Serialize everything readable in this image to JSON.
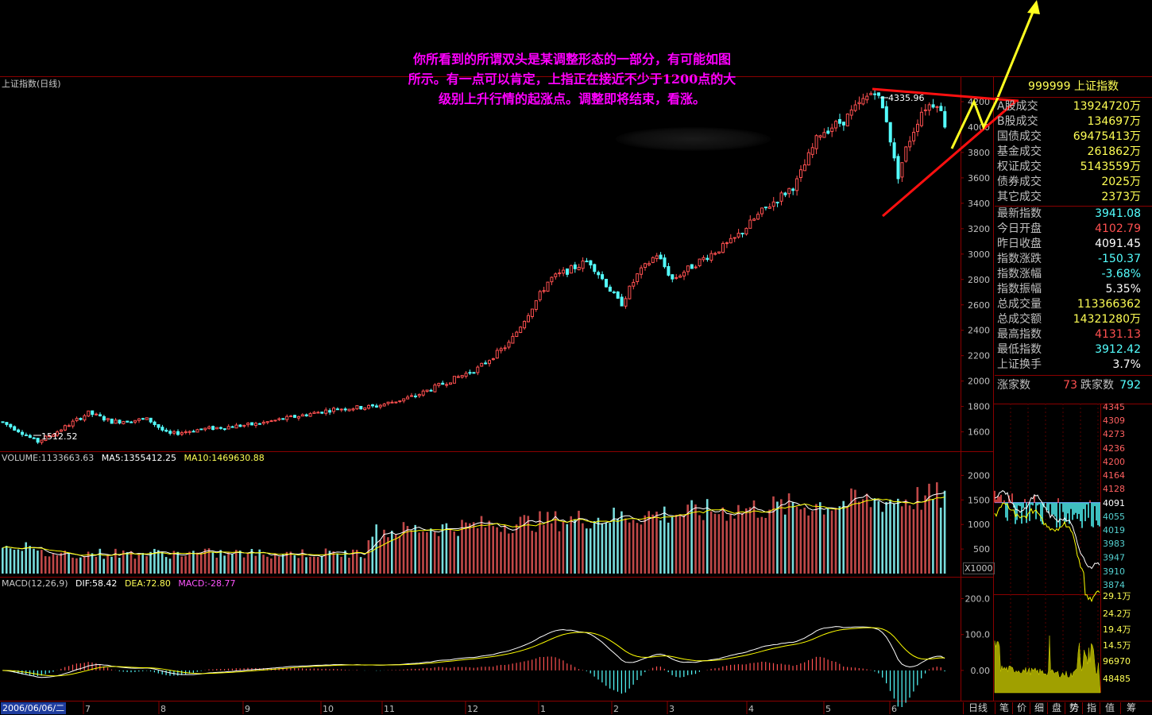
{
  "annotation": {
    "lines": [
      "你所看到的所谓双头是某调整形态的一部分，有可能如图",
      "所示。有一点可以肯定，上指正在接近不少于1200点的大",
      "级别上升行情的起涨点。调整即将结束，看涨。"
    ]
  },
  "chart_header": "上证指数(日线)",
  "volume_header": {
    "volume": "VOLUME:1133663.63",
    "ma5": "MA5:1355412.25",
    "ma10": "MA10:1469630.88"
  },
  "macd_header": {
    "label": "MACD(12,26,9)",
    "dif": "DIF:58.42",
    "dea": "DEA:72.80",
    "macd": "MACD:-28.77"
  },
  "colors": {
    "up": "#ff5050",
    "down": "#54ffff",
    "ma_white": "#ffffff",
    "ma_yellow": "#ffff00",
    "magenta": "#ff00ff",
    "grid": "#8a0000"
  },
  "chart_data": [
    {
      "type": "candlestick",
      "series_name": "上证指数",
      "yticks": [
        1600,
        1800,
        2000,
        2200,
        2400,
        2600,
        2800,
        3000,
        3200,
        3400,
        3600,
        3800,
        4000,
        4200
      ],
      "ylim": [
        1460,
        4400
      ],
      "low_label": "1512.52",
      "high_label": "4335.96",
      "path_anchors": [
        [
          0,
          1680
        ],
        [
          25,
          1600
        ],
        [
          45,
          1520
        ],
        [
          70,
          1600
        ],
        [
          110,
          1750
        ],
        [
          140,
          1680
        ],
        [
          185,
          1700
        ],
        [
          210,
          1580
        ],
        [
          250,
          1620
        ],
        [
          320,
          1660
        ],
        [
          420,
          1780
        ],
        [
          470,
          1800
        ],
        [
          520,
          1880
        ],
        [
          560,
          1990
        ],
        [
          600,
          2100
        ],
        [
          640,
          2300
        ],
        [
          665,
          2550
        ],
        [
          690,
          2800
        ],
        [
          740,
          2950
        ],
        [
          780,
          2600
        ],
        [
          800,
          2830
        ],
        [
          825,
          3000
        ],
        [
          845,
          2800
        ],
        [
          880,
          2950
        ],
        [
          920,
          3100
        ],
        [
          960,
          3350
        ],
        [
          1000,
          3550
        ],
        [
          1030,
          3950
        ],
        [
          1060,
          4050
        ],
        [
          1100,
          4300
        ],
        [
          1115,
          4050
        ],
        [
          1128,
          3600
        ],
        [
          1140,
          3850
        ],
        [
          1160,
          4150
        ],
        [
          1178,
          4200
        ],
        [
          1192,
          3950
        ]
      ]
    },
    {
      "type": "bar",
      "series_name": "VOLUME",
      "yticks": [
        500,
        1000,
        1500,
        2000
      ],
      "ylim": [
        0,
        2200
      ],
      "unit": "X1000"
    },
    {
      "type": "bar",
      "series_name": "MACD",
      "yticks": [
        "0.00",
        "100.0",
        "200.0"
      ],
      "ylim": [
        -80,
        230
      ]
    },
    {
      "type": "line",
      "series_name": "intraday",
      "yticks": [
        "4345",
        "4309",
        "4273",
        "4236",
        "4200",
        "4164",
        "4128",
        "4091",
        "4055",
        "4019",
        "3983",
        "3947",
        "3910",
        "3874"
      ],
      "prev_close": 4091.45,
      "vol_ticks": [
        "29.1万",
        "24.2万",
        "19.4万",
        "14.5万",
        "96970",
        "48485"
      ]
    }
  ],
  "xaxis": {
    "date_label": "2006/06/06/二",
    "months": [
      "7",
      "8",
      "9",
      "10",
      "11",
      "12",
      "1",
      "2",
      "3",
      "4",
      "5",
      "6"
    ]
  },
  "panel": {
    "title": "999999 上证指数",
    "rows": [
      {
        "label": "A股成交",
        "value": "13924720万",
        "color": "#ffff55"
      },
      {
        "label": "B股成交",
        "value": "134697万",
        "color": "#ffff55"
      },
      {
        "label": "国债成交",
        "value": "69475413万",
        "color": "#ffff55"
      },
      {
        "label": "基金成交",
        "value": "261862万",
        "color": "#ffff55"
      },
      {
        "label": "权证成交",
        "value": "5143559万",
        "color": "#ffff55"
      },
      {
        "label": "债券成交",
        "value": "2025万",
        "color": "#ffff55"
      },
      {
        "label": "其它成交",
        "value": "2373万",
        "color": "#ffff55"
      },
      {
        "label": "最新指数",
        "value": "3941.08",
        "color": "#54ffff"
      },
      {
        "label": "今日开盘",
        "value": "4102.79",
        "color": "#ff5050"
      },
      {
        "label": "昨日收盘",
        "value": "4091.45",
        "color": "#ffffff"
      },
      {
        "label": "指数涨跌",
        "value": "-150.37",
        "color": "#54ffff"
      },
      {
        "label": "指数涨幅",
        "value": "-3.68%",
        "color": "#54ffff"
      },
      {
        "label": "指数振幅",
        "value": "5.35%",
        "color": "#ffffff"
      },
      {
        "label": "总成交量",
        "value": "113366362",
        "color": "#ffff55"
      },
      {
        "label": "总成交额",
        "value": "14321280万",
        "color": "#ffff55"
      },
      {
        "label": "最高指数",
        "value": "4131.13",
        "color": "#ff5050"
      },
      {
        "label": "最低指数",
        "value": "3912.42",
        "color": "#54ffff"
      },
      {
        "label": "上证换手",
        "value": "3.7%",
        "color": "#ffffff"
      }
    ],
    "rise_label": "涨家数",
    "rise_value": "73",
    "fall_label": "跌家数",
    "fall_value": "792"
  },
  "bottom_buttons": [
    "日线",
    "笔",
    "价",
    "细",
    "盘",
    "势",
    "指",
    "值",
    "筹"
  ]
}
